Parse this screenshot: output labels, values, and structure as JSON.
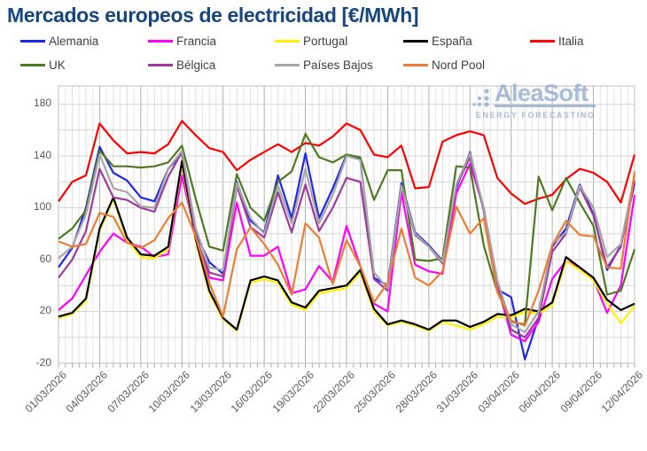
{
  "title": "Mercados europeos de electricidad [€/MWh]",
  "logo": {
    "name": "AleaSoft",
    "tagline": "ENERGY FORECASTING",
    "color": "#93ABCE"
  },
  "axis_colors": {
    "tick_text": "#595959",
    "grid_h": "#D5D5D5",
    "grid_minor": "#E7E7E7",
    "grid_day": "#DDDDDD",
    "grid_major": "#AFAFAF",
    "border": "#BFBFBF"
  },
  "chart_data": {
    "type": "line",
    "title": "Mercados europeos de electricidad [€/MWh]",
    "x_start": "01/03/2026",
    "x_end": "12/04/2026",
    "x_tick_labels": [
      "01/03/2026",
      "04/03/2026",
      "07/03/2026",
      "10/03/2026",
      "13/03/2026",
      "16/03/2026",
      "19/03/2026",
      "22/03/2026",
      "25/03/2026",
      "28/03/2026",
      "31/03/2026",
      "03/04/2026",
      "06/04/2026",
      "09/04/2026",
      "12/04/2026"
    ],
    "x_label_every_days": 3,
    "n_points": 43,
    "ylim": [
      -20,
      194
    ],
    "yticks": [
      -20,
      20,
      60,
      100,
      140,
      180
    ],
    "grid": "both",
    "legend_position": "top",
    "series": [
      {
        "name": "Alemania",
        "color": "#2028E8",
        "values": [
          54,
          69,
          100,
          147,
          127,
          121,
          108,
          105,
          130,
          142,
          80,
          58,
          49,
          120,
          90,
          81,
          125,
          92,
          142,
          92,
          115,
          141,
          138,
          46,
          40,
          119,
          81,
          71,
          59,
          115,
          143,
          98,
          37,
          31,
          -17,
          15,
          70,
          84,
          118,
          95,
          52,
          71,
          119
        ]
      },
      {
        "name": "Francia",
        "color": "#FF00FF",
        "values": [
          21,
          30,
          48,
          66,
          80,
          73,
          70,
          62,
          64,
          125,
          78,
          46,
          44,
          104,
          63,
          63,
          70,
          34,
          37,
          55,
          43,
          86,
          55,
          26,
          20,
          112,
          56,
          51,
          49,
          111,
          134,
          100,
          40,
          2,
          -3,
          12,
          45,
          59,
          54,
          45,
          19,
          40,
          110
        ]
      },
      {
        "name": "Portugal",
        "color": "#FFF200",
        "values": [
          15,
          18,
          28,
          82,
          107,
          75,
          62,
          61,
          68,
          134,
          74,
          34,
          14,
          5,
          42,
          45,
          42,
          25,
          21,
          34,
          36,
          38,
          50,
          20,
          9,
          12,
          9,
          5,
          12,
          9,
          6,
          10,
          16,
          15,
          20,
          18,
          25,
          59,
          52,
          44,
          26,
          11,
          24
        ]
      },
      {
        "name": "España",
        "color": "#000000",
        "values": [
          16,
          19,
          30,
          84,
          108,
          77,
          64,
          63,
          70,
          136,
          76,
          36,
          15,
          6,
          44,
          47,
          44,
          27,
          23,
          36,
          38,
          40,
          52,
          22,
          10,
          13,
          10,
          6,
          13,
          13,
          8,
          12,
          18,
          17,
          22,
          20,
          27,
          62,
          54,
          46,
          29,
          21,
          26
        ]
      },
      {
        "name": "Italia",
        "color": "#FF0000",
        "values": [
          105,
          120,
          125,
          165,
          152,
          142,
          143,
          142,
          149,
          167,
          156,
          146,
          143,
          129,
          137,
          143,
          149,
          143,
          150,
          148,
          155,
          165,
          160,
          141,
          139,
          148,
          115,
          116,
          151,
          156,
          159,
          156,
          123,
          111,
          103,
          107,
          110,
          122,
          130,
          127,
          120,
          104,
          141
        ]
      },
      {
        "name": "UK",
        "color": "#4E7A22",
        "values": [
          76,
          84,
          98,
          144,
          132,
          132,
          131,
          132,
          135,
          148,
          107,
          70,
          67,
          126,
          100,
          90,
          120,
          128,
          157,
          139,
          135,
          141,
          139,
          106,
          129,
          129,
          60,
          59,
          61,
          132,
          131,
          71,
          35,
          12,
          10,
          124,
          98,
          123,
          104,
          86,
          33,
          36,
          68
        ]
      },
      {
        "name": "Bélgica",
        "color": "#9E3A9E",
        "values": [
          46,
          60,
          82,
          130,
          108,
          106,
          100,
          97,
          124,
          143,
          77,
          50,
          47,
          117,
          85,
          77,
          112,
          81,
          118,
          82,
          100,
          123,
          120,
          45,
          36,
          116,
          79,
          70,
          57,
          117,
          139,
          98,
          40,
          6,
          0,
          15,
          66,
          80,
          116,
          94,
          54,
          70,
          121
        ]
      },
      {
        "name": "Países Bajos",
        "color": "#A6A6A6",
        "values": [
          61,
          70,
          95,
          141,
          115,
          112,
          101,
          100,
          130,
          144,
          84,
          54,
          52,
          119,
          92,
          80,
          117,
          88,
          130,
          88,
          110,
          140,
          137,
          50,
          38,
          117,
          80,
          70,
          58,
          118,
          142,
          100,
          44,
          10,
          4,
          20,
          72,
          81,
          117,
          100,
          62,
          72,
          125
        ]
      },
      {
        "name": "Nord Pool",
        "color": "#ED7D31",
        "values": [
          74,
          70,
          72,
          96,
          93,
          73,
          69,
          75,
          92,
          104,
          78,
          42,
          16,
          68,
          85,
          72,
          56,
          33,
          88,
          77,
          41,
          75,
          55,
          27,
          42,
          84,
          46,
          40,
          51,
          101,
          80,
          92,
          35,
          13,
          9,
          36,
          71,
          90,
          79,
          78,
          54,
          53,
          128
        ]
      }
    ]
  }
}
